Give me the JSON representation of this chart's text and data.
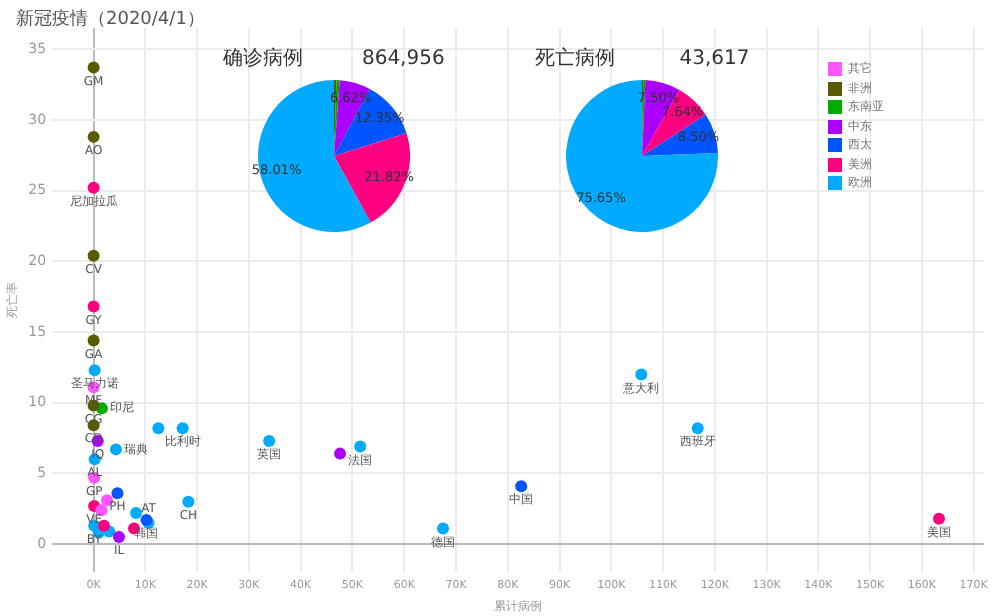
{
  "chart_data": [
    {
      "type": "scatter",
      "title": "新冠疫情（2020/4/1）",
      "xlabel": "累计病例",
      "ylabel": "死亡率",
      "marker": "circle",
      "grid": true,
      "legend": "top right",
      "xlim": [
        -8000,
        172000
      ],
      "ylim": [
        -2,
        36.5
      ],
      "xticks": [
        {
          "value": 0,
          "label": "0K"
        },
        {
          "value": 10000,
          "label": "10K"
        },
        {
          "value": 20000,
          "label": "20K"
        },
        {
          "value": 30000,
          "label": "30K"
        },
        {
          "value": 40000,
          "label": "40K"
        },
        {
          "value": 50000,
          "label": "50K"
        },
        {
          "value": 60000,
          "label": "60K"
        },
        {
          "value": 70000,
          "label": "70K"
        },
        {
          "value": 80000,
          "label": "80K"
        },
        {
          "value": 90000,
          "label": "90K"
        },
        {
          "value": 100000,
          "label": "100K"
        },
        {
          "value": 110000,
          "label": "110K"
        },
        {
          "value": 120000,
          "label": "120K"
        },
        {
          "value": 130000,
          "label": "130K"
        },
        {
          "value": 140000,
          "label": "140K"
        },
        {
          "value": 150000,
          "label": "150K"
        },
        {
          "value": 160000,
          "label": "160K"
        },
        {
          "value": 170000,
          "label": "170K"
        }
      ],
      "yticks": [
        0,
        5,
        10,
        15,
        20,
        25,
        30,
        35
      ],
      "series": [
        {
          "name": "其它",
          "color": "#ff55ff",
          "x": [
            0,
            100,
            1500,
            2600
          ],
          "values": [
            11.1,
            4.7,
            2.4,
            3.1
          ],
          "value_labels": [
            "MF",
            "GP",
            null,
            null
          ]
        },
        {
          "name": "非洲",
          "color": "#5a5a00",
          "x": [
            0,
            0,
            0,
            0,
            0,
            0
          ],
          "values": [
            33.7,
            28.8,
            20.4,
            14.4,
            9.8,
            8.4
          ],
          "value_labels": [
            "GM",
            "AO",
            "CV",
            "GA",
            "CG",
            "CD"
          ]
        },
        {
          "name": "东南亚",
          "color": "#00aa00",
          "x": [
            1600
          ],
          "values": [
            9.6
          ],
          "value_labels": [
            "印尼"
          ]
        },
        {
          "name": "中东",
          "color": "#aa00ff",
          "x": [
            47600,
            800,
            4900
          ],
          "values": [
            6.4,
            7.3,
            0.5
          ],
          "value_labels": [
            null,
            "IQ",
            "IL"
          ]
        },
        {
          "name": "西太",
          "color": "#0055ff",
          "x": [
            82600,
            10200,
            4600
          ],
          "values": [
            4.1,
            1.7,
            3.6
          ],
          "value_labels": [
            "中国",
            "韩国",
            "PH"
          ]
        },
        {
          "name": "美洲",
          "color": "#ff0080",
          "x": [
            163300,
            0,
            0,
            100,
            7800,
            2000
          ],
          "values": [
            1.8,
            25.2,
            16.8,
            2.7,
            1.1,
            1.3
          ],
          "value_labels": [
            "美国",
            "尼加拉瓜",
            "GY",
            "VE",
            null,
            null
          ]
        },
        {
          "name": "欧洲",
          "color": "#00aaff",
          "x": [
            105800,
            116700,
            67500,
            51500,
            33900,
            17200,
            12500,
            18300,
            4300,
            10600,
            8200,
            200,
            200,
            100,
            3000,
            1000
          ],
          "values": [
            12.0,
            8.2,
            1.1,
            6.9,
            7.3,
            8.2,
            8.2,
            3.0,
            6.7,
            1.5,
            2.2,
            12.3,
            6.0,
            1.3,
            0.9,
            0.8
          ],
          "value_labels": [
            "意大利",
            "西班牙",
            "德国",
            "法国",
            "英国",
            "比利时",
            null,
            "CH",
            "瑞典",
            "AT",
            null,
            "圣马力诺",
            "AL",
            "BY",
            null,
            null
          ]
        }
      ]
    },
    {
      "type": "pie",
      "title": "确诊病例",
      "subtitle": "864,956",
      "categories": [
        null,
        null,
        null,
        null,
        null,
        null
      ],
      "values": [
        0.5,
        0.7,
        6.62,
        12.35,
        21.82,
        58.01
      ],
      "colors": [
        "#5a5a00",
        "#00aa00",
        "#aa00ff",
        "#0055ff",
        "#ff0080",
        "#00aaff"
      ],
      "value_labels": [
        null,
        null,
        "6.62%",
        "12.35%",
        "21.82%",
        "58.01%"
      ]
    },
    {
      "type": "pie",
      "title": "死亡病例",
      "subtitle": "43,617",
      "categories": [
        null,
        null,
        null,
        null,
        null,
        null
      ],
      "values": [
        0.25,
        0.46,
        7.5,
        7.64,
        8.5,
        75.65
      ],
      "colors": [
        "#5a5a00",
        "#00aa00",
        "#aa00ff",
        "#ff0080",
        "#0055ff",
        "#00aaff"
      ],
      "value_labels": [
        null,
        null,
        "7.50%",
        "7.64%",
        "8.50%",
        "75.65%"
      ]
    }
  ]
}
